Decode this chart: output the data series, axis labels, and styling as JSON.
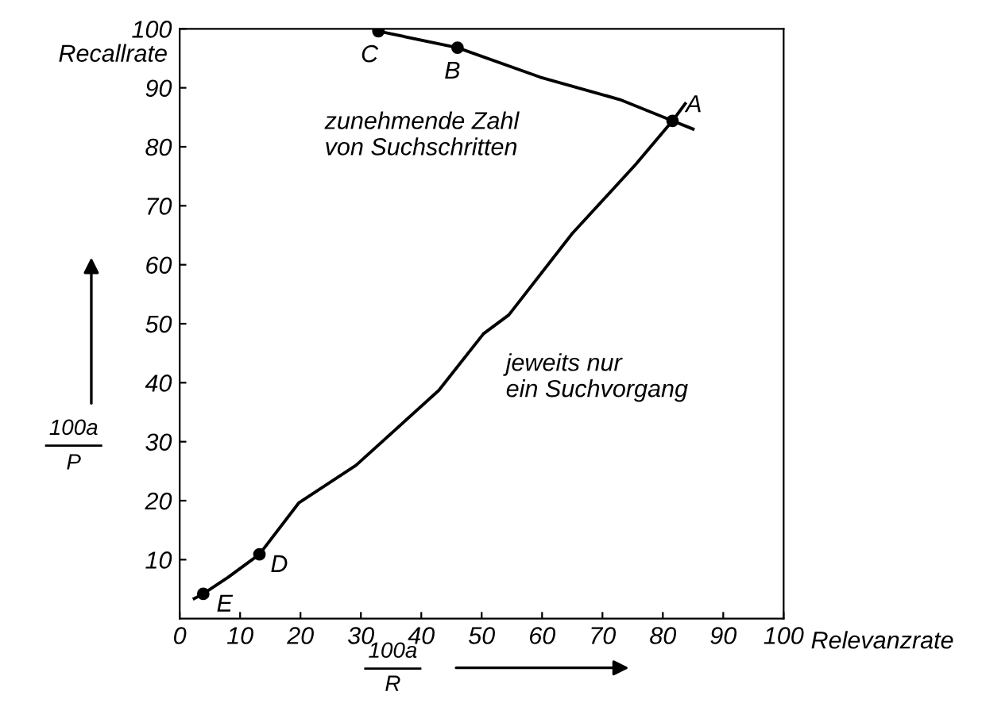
{
  "chart_data": {
    "type": "line",
    "xlabel": "Relevanzrate",
    "ylabel": "Recallrate",
    "xlim": [
      0,
      100
    ],
    "ylim": [
      0,
      100
    ],
    "xticks": [
      0,
      10,
      20,
      30,
      40,
      50,
      60,
      70,
      80,
      90,
      100
    ],
    "yticks": [
      10,
      20,
      30,
      40,
      50,
      60,
      70,
      80,
      90,
      100
    ],
    "grid": false,
    "legend": false,
    "series": [
      {
        "color": "#000000",
        "marker": "none",
        "x": [
          2.4,
          3.9,
          8,
          13.2,
          19.7,
          29.2,
          42.9,
          50.3,
          54.5,
          65,
          75.5,
          81.6,
          83.7
        ],
        "values": [
          3.4,
          4.2,
          7,
          10.9,
          19.6,
          26,
          38.7,
          48.3,
          51.5,
          65.3,
          77,
          84.4,
          87.3
        ]
      },
      {
        "color": "#000000",
        "marker": "none",
        "x": [
          32.9,
          46,
          59.7,
          72.9,
          81.6,
          85
        ],
        "values": [
          99.6,
          96.8,
          91.8,
          88,
          84.4,
          83
        ]
      },
      {
        "type": "scatter",
        "color": "#000000",
        "marker": "circle",
        "x": [
          81.6,
          46,
          32.9,
          13.2,
          3.9
        ],
        "values": [
          84.4,
          96.8,
          99.6,
          10.9,
          4.2
        ]
      }
    ],
    "annotations": [
      {
        "text": "A",
        "x": 81.6,
        "y": 84.4
      },
      {
        "text": "B",
        "x": 46,
        "y": 96.8
      },
      {
        "text": "C",
        "x": 32.9,
        "y": 99.6
      },
      {
        "text": "D",
        "x": 13.2,
        "y": 10.9
      },
      {
        "text": "E",
        "x": 3.9,
        "y": 4.2
      },
      "zunehmende Zahl\nvon Suchschritten",
      "jeweits nur\nein Suchvorgang",
      "100a",
      "P",
      "100a",
      "R"
    ]
  }
}
